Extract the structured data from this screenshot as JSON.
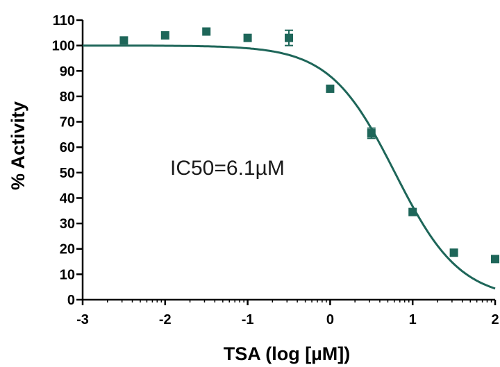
{
  "chart_data": {
    "type": "scatter",
    "title": "",
    "xlabel": "TSA (log [µM])",
    "ylabel": "% Activity",
    "xlim": [
      -3,
      2
    ],
    "ylim": [
      0,
      110
    ],
    "x_ticks": [
      -3,
      -2,
      -1,
      0,
      1,
      2
    ],
    "y_ticks": [
      0,
      10,
      20,
      30,
      40,
      50,
      60,
      70,
      80,
      90,
      100,
      110
    ],
    "grid": false,
    "legend": "none",
    "color": "#1e6659",
    "series": [
      {
        "points": [
          {
            "x": -2.5,
            "y": 102
          },
          {
            "x": -2.0,
            "y": 104
          },
          {
            "x": -1.5,
            "y": 105.5
          },
          {
            "x": -1.0,
            "y": 103
          },
          {
            "x": -0.5,
            "y": 103,
            "err": 3
          },
          {
            "x": 0.0,
            "y": 83
          },
          {
            "x": 0.5,
            "y": 65.5,
            "err": 2
          },
          {
            "x": 1.0,
            "y": 34.5
          },
          {
            "x": 1.5,
            "y": 18.5
          },
          {
            "x": 2.0,
            "y": 16
          }
        ]
      }
    ],
    "fit": {
      "model": "sigmoidal dose-response",
      "top": 100,
      "bottom": 0,
      "log_ic50": 0.785,
      "hill": -1.1
    },
    "annotation": "IC50=6.1µM"
  }
}
